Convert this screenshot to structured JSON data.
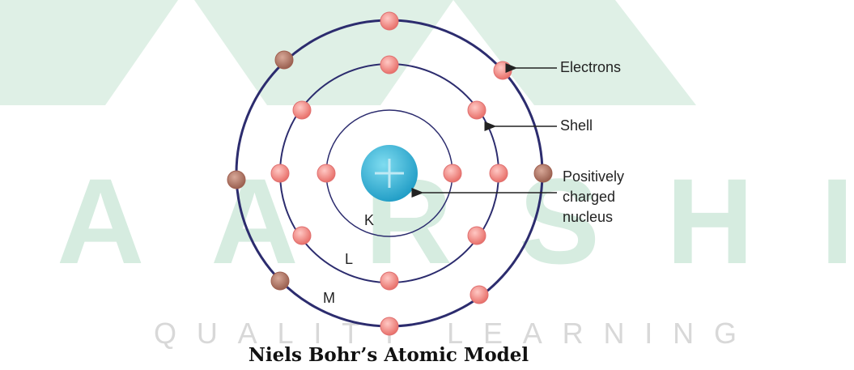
{
  "watermark": {
    "brand": "AARSHI",
    "tagline": "QUALITY LEARNING"
  },
  "labels": {
    "electrons": "Electrons",
    "shell": "Shell",
    "nucleus": [
      "Positively",
      "charged",
      "nucleus"
    ]
  },
  "shells": [
    "K",
    "L",
    "M"
  ],
  "title": "Niels Bohr’s Atomic Model"
}
